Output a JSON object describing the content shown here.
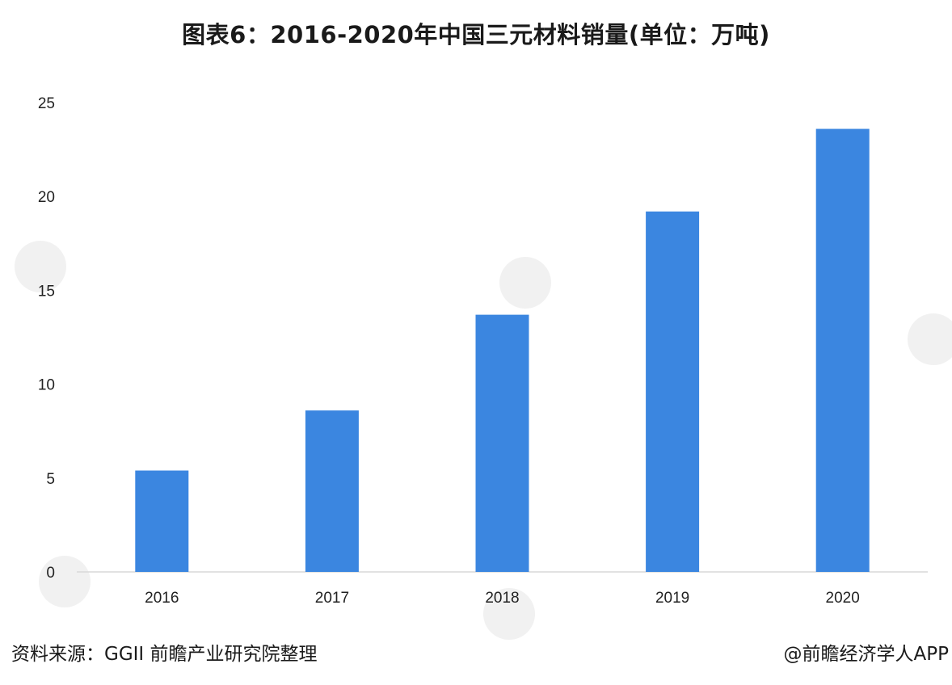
{
  "chart_data": {
    "type": "bar",
    "title": "图表6：2016-2020年中国三元材料销量(单位：万吨)",
    "categories": [
      "2016",
      "2017",
      "2018",
      "2019",
      "2020"
    ],
    "values": [
      5.4,
      8.6,
      13.7,
      19.2,
      23.6
    ],
    "ylim": [
      0,
      25
    ],
    "yticks": [
      0,
      5,
      10,
      15,
      20,
      25
    ],
    "xlabel": "",
    "ylabel": "",
    "grid": false,
    "bar_color": "#3b86e0"
  },
  "footer": {
    "source": "资料来源：GGII 前瞻产业研究院整理",
    "credit": "@前瞻经济学人APP"
  }
}
